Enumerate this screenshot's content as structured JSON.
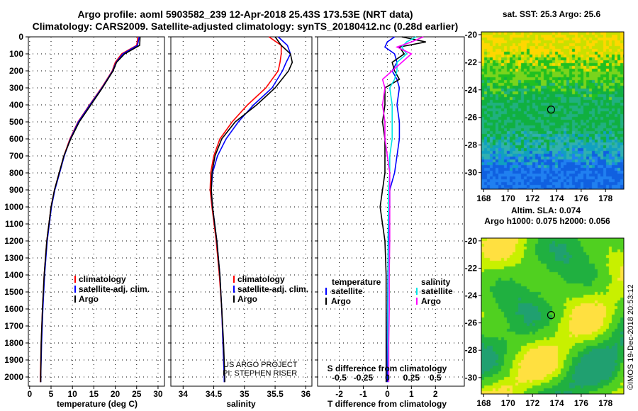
{
  "header": {
    "line1": "Argo profile: aoml 5903582_239 12-Apr-2018 25.43S 173.53E (NRT data)",
    "line2": "Climatology: CARS2009. Satellite-adjusted climatology: synTS_20180412.nc (0.28d earlier)"
  },
  "credit": {
    "project": "US ARGO PROJECT",
    "pi": "PI: STEPHEN RISER",
    "imos": "©IMOS 19-Dec-2018 20:53:12"
  },
  "colors": {
    "clim": "#ff0000",
    "sat": "#0000ff",
    "argo": "#000000",
    "sal_sat": "#00e5e5",
    "sal_argo": "#ff00ff"
  },
  "chart_data": [
    {
      "type": "line",
      "xlabel": "temperature (deg C)",
      "ylabel": "",
      "xlim": [
        -0.3,
        31.5
      ],
      "ylim": [
        2054,
        -25
      ],
      "xticks": [
        "0",
        "5",
        "10",
        "15",
        "20",
        "25",
        "30"
      ],
      "yticks": [
        "0",
        "100",
        "200",
        "300",
        "400",
        "500",
        "600",
        "700",
        "800",
        "900",
        "1000",
        "1100",
        "1200",
        "1300",
        "1400",
        "1500",
        "1600",
        "1700",
        "1800",
        "1900",
        "2000"
      ],
      "legend": [
        "climatology",
        "satellite-adj. clim.",
        "Argo"
      ],
      "depth": [
        0,
        50,
        100,
        150,
        200,
        300,
        400,
        500,
        600,
        700,
        800,
        900,
        1000,
        1200,
        1400,
        1600,
        1800,
        2000,
        2030
      ],
      "series": [
        {
          "name": "climatology",
          "values": [
            25.3,
            25,
            21.5,
            20,
            19.3,
            16.8,
            14,
            11.3,
            9.4,
            8,
            6.9,
            5.8,
            5,
            4,
            3.4,
            3.0,
            2.7,
            2.5,
            2.5
          ]
        },
        {
          "name": "satellite-adj. clim.",
          "values": [
            25.6,
            25.2,
            21.8,
            20.2,
            19.4,
            16.9,
            14.1,
            11.4,
            9.5,
            8.1,
            7,
            5.9,
            5.1,
            4.1,
            3.5,
            3.1,
            2.8,
            2.6,
            2.6
          ]
        },
        {
          "name": "Argo",
          "values": [
            25.8,
            25.7,
            22.2,
            20.3,
            19.5,
            17,
            14.3,
            11.6,
            9.6,
            8.0,
            6.9,
            5.8,
            5,
            4,
            3.4,
            3.0,
            2.7,
            2.6,
            2.6
          ]
        }
      ]
    },
    {
      "type": "line",
      "xlabel": "salinity",
      "xlim": [
        33.8,
        36.1
      ],
      "ylim": [
        2054,
        -25
      ],
      "xticks": [
        "34",
        "34.5",
        "35",
        "35.5",
        "36"
      ],
      "legend": [
        "climatology",
        "satellite-adj. clim.",
        "Argo"
      ],
      "depth": [
        0,
        50,
        100,
        150,
        200,
        300,
        400,
        500,
        600,
        700,
        800,
        900,
        1000,
        1200,
        1400,
        1600,
        1800,
        2000,
        2030
      ],
      "series": [
        {
          "name": "climatology",
          "values": [
            35.4,
            35.6,
            35.6,
            35.58,
            35.55,
            35.35,
            35.05,
            34.8,
            34.6,
            34.5,
            34.45,
            34.44,
            34.47,
            34.54,
            34.59,
            34.63,
            34.65,
            34.67,
            34.67
          ]
        },
        {
          "name": "satellite-adj. clim.",
          "values": [
            35.55,
            35.7,
            35.75,
            35.68,
            35.62,
            35.45,
            35.15,
            34.9,
            34.7,
            34.56,
            34.48,
            34.46,
            34.48,
            34.55,
            34.6,
            34.63,
            34.65,
            34.67,
            34.67
          ]
        },
        {
          "name": "Argo",
          "values": [
            35.5,
            35.6,
            35.75,
            35.78,
            35.72,
            35.5,
            35.2,
            34.85,
            34.63,
            34.52,
            34.47,
            34.46,
            34.48,
            34.55,
            34.6,
            34.63,
            34.66,
            34.68,
            34.68
          ]
        }
      ]
    },
    {
      "type": "line",
      "xlabel": "T difference from climatology",
      "x2label": "S difference from climatology",
      "xlim": [
        -2.9,
        3.2
      ],
      "ylim": [
        2054,
        -25
      ],
      "xticks": [
        "-2",
        "-1",
        "0",
        "1",
        "2"
      ],
      "x2ticks": [
        "-0.5",
        "-0.25",
        "0",
        "0.25",
        "0.5"
      ],
      "legend_t": {
        "title": "temperature",
        "items": [
          "satellite",
          "Argo"
        ]
      },
      "legend_s": {
        "title": "salinity",
        "items": [
          "satellite",
          "Argo"
        ]
      },
      "depth": [
        0,
        30,
        60,
        100,
        150,
        200,
        250,
        300,
        400,
        500,
        600,
        700,
        800,
        900,
        1000,
        1200,
        1400,
        1600,
        1800,
        2000,
        2030
      ],
      "series": [
        {
          "name": "T satellite",
          "values": [
            0.3,
            0,
            -0.1,
            0.3,
            0.4,
            0.2,
            0.4,
            0.5,
            0.4,
            0.5,
            0.5,
            0.4,
            0.3,
            0.1,
            0.1,
            0.05,
            0.02,
            0.01,
            0,
            0,
            0
          ]
        },
        {
          "name": "T Argo",
          "values": [
            0.6,
            1.6,
            0.5,
            0.7,
            0.2,
            0.3,
            0.5,
            -0.1,
            -0.1,
            -0.2,
            -0.1,
            -0.1,
            -0.1,
            -0.2,
            -0.3,
            -0.1,
            -0.05,
            -0.05,
            -0.05,
            -0.05,
            -0.05
          ]
        },
        {
          "name": "S satellite",
          "values": [
            1.2,
            0.8,
            0.6,
            0.8,
            0.4,
            0.4,
            0.3,
            0.1,
            0.2,
            0.2,
            0.2,
            0.1,
            0.1,
            0.05,
            0.05,
            0.03,
            0.03,
            0.02,
            0.02,
            0.04,
            0.04
          ]
        },
        {
          "name": "S Argo",
          "values": [
            1.5,
            1.0,
            0.4,
            1.0,
            0.6,
            0.2,
            -0.2,
            -0.1,
            -0.2,
            -0.1,
            -0.1,
            0,
            0.1,
            0.1,
            0.1,
            0.1,
            0.08,
            0.08,
            0.06,
            0.06,
            0.06
          ]
        }
      ]
    },
    {
      "type": "heatmap",
      "title": "sat. SST: 25.3 Argo: 25.6",
      "xticks": [
        "168",
        "170",
        "172",
        "174",
        "176",
        "178"
      ],
      "yticks": [
        "-20",
        "-22",
        "-24",
        "-26",
        "-28",
        "-30"
      ],
      "xlim": [
        167.8,
        179.5
      ],
      "ylim": [
        -31.2,
        -19.8
      ],
      "marker": [
        173.53,
        -25.43
      ]
    },
    {
      "type": "heatmap",
      "title": "Altim. SLA: 0.074",
      "subtitle": "Argo h1000: 0.075 h2000: 0.056",
      "xticks": [
        "168",
        "170",
        "172",
        "174",
        "176",
        "178"
      ],
      "yticks": [
        "-20",
        "-22",
        "-24",
        "-26",
        "-28",
        "-30"
      ],
      "xlim": [
        167.8,
        179.5
      ],
      "ylim": [
        -31.2,
        -19.8
      ],
      "marker": [
        173.53,
        -25.43
      ]
    }
  ]
}
